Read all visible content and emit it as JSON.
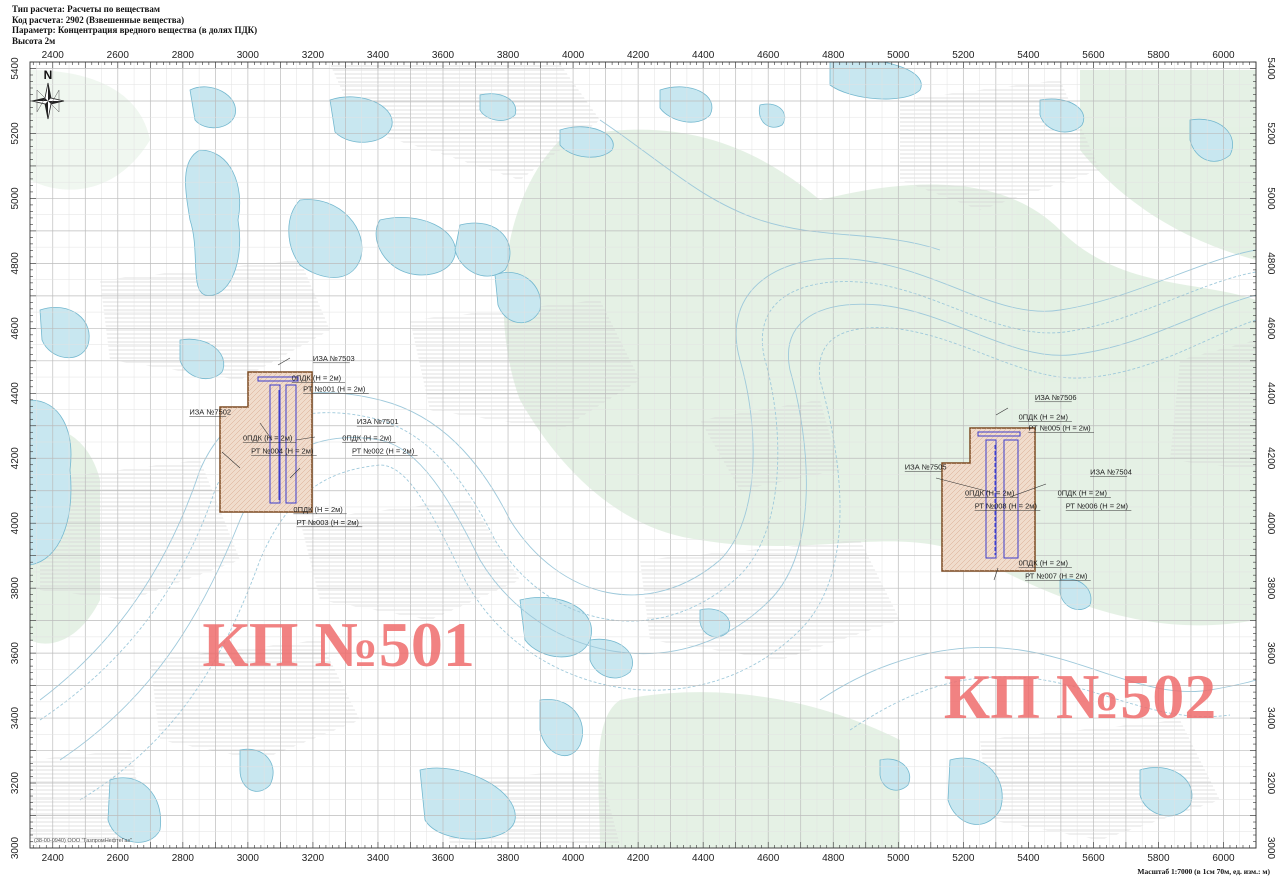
{
  "header": {
    "line1": "Тип расчета: Расчеты по веществам",
    "line2": "Код расчета: 2902 (Взвешенные вещества)",
    "line3": "Параметр: Концентрация вредного вещества (в долях ПДК)",
    "line4": "Высота 2м"
  },
  "axes": {
    "x_ticks": [
      "2400",
      "2600",
      "2800",
      "3000",
      "3200",
      "3400",
      "3600",
      "3800",
      "4000",
      "4200",
      "4400",
      "4600",
      "4800",
      "5000",
      "5200",
      "5400",
      "5600",
      "5800",
      "6000"
    ],
    "y_ticks": [
      "5400",
      "5200",
      "5000",
      "4800",
      "4600",
      "4400",
      "4200",
      "4000",
      "3800",
      "3600",
      "3400",
      "3200",
      "3000"
    ],
    "x_range": [
      2330,
      6100
    ],
    "y_range": [
      3000,
      5420
    ]
  },
  "north_label": "N",
  "sites": [
    {
      "name": "КП №501",
      "x": 2860,
      "y": 3560
    },
    {
      "name": "КП №502",
      "x": 5140,
      "y": 3400
    }
  ],
  "labels": [
    {
      "text": "ИЗА №7503",
      "x": 3200,
      "y": 4500
    },
    {
      "text": "0ПДК (Н = 2м)",
      "x": 3135,
      "y": 4440
    },
    {
      "text": "РТ №001 (Н = 2м)",
      "x": 3170,
      "y": 4405
    },
    {
      "text": "ИЗА №7502",
      "x": 2820,
      "y": 4335
    },
    {
      "text": "ИЗА №7501",
      "x": 3335,
      "y": 4305
    },
    {
      "text": "0ПДК (Н = 2м)",
      "x": 2985,
      "y": 4255
    },
    {
      "text": "0ПДК (Н = 2м)",
      "x": 3290,
      "y": 4255
    },
    {
      "text": "РТ №004 (Н = 2м)",
      "x": 3010,
      "y": 4215
    },
    {
      "text": "РТ №002 (Н = 2м)",
      "x": 3320,
      "y": 4215
    },
    {
      "text": "0ПДК (Н = 2м)",
      "x": 3140,
      "y": 4035
    },
    {
      "text": "РТ №003 (Н = 2м)",
      "x": 3150,
      "y": 3995
    },
    {
      "text": "ИЗА №7506",
      "x": 5420,
      "y": 4380
    },
    {
      "text": "0ПДК (Н = 2м)",
      "x": 5370,
      "y": 4320
    },
    {
      "text": "РТ №005 (Н = 2м)",
      "x": 5400,
      "y": 4285
    },
    {
      "text": "ИЗА №7505",
      "x": 5020,
      "y": 4165
    },
    {
      "text": "ИЗА №7504",
      "x": 5590,
      "y": 4150
    },
    {
      "text": "0ПДК (Н = 2м)",
      "x": 5205,
      "y": 4085
    },
    {
      "text": "0ПДК (Н = 2м)",
      "x": 5490,
      "y": 4085
    },
    {
      "text": "РТ №008 (Н = 2м)",
      "x": 5235,
      "y": 4045
    },
    {
      "text": "РТ №006 (Н = 2м)",
      "x": 5515,
      "y": 4045
    },
    {
      "text": "0ПДК (Н = 2м)",
      "x": 5370,
      "y": 3870
    },
    {
      "text": "РТ №007 (Н = 2м)",
      "x": 5390,
      "y": 3830
    }
  ],
  "copyright": "(38-00-0940) ООО \"ГазпромНефтеГаз\"",
  "scale_text": "Масштаб 1:7000 (в 1см 70м, ед. изм.: м)",
  "colors": {
    "water": "#c7e6ef",
    "water_stroke": "#6fb4cc",
    "vegetation": "#e1efe1",
    "hatch": "#d8d8d8",
    "grid": "#c8c8c8",
    "site_fill": "#efd9c9",
    "site_stroke": "#7b4a22",
    "source": "#3d3dcc",
    "site_label": "#ee6c6c"
  }
}
